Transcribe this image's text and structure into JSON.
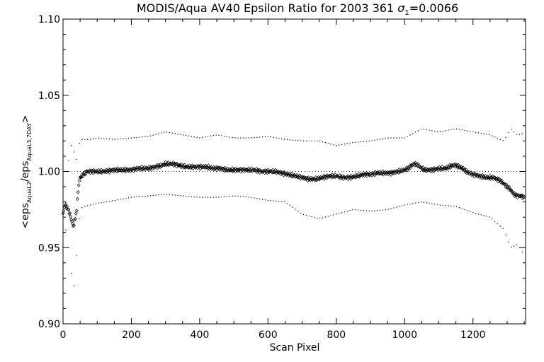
{
  "chart_data": {
    "type": "scatter",
    "title": "MODIS/Aqua AV40 Epsilon Ratio for 2003 361",
    "title_sigma_symbol": "σ",
    "title_sigma_subscript": "1",
    "title_sigma_value": "=0.0066",
    "xlabel": "Scan Pixel",
    "ylabel_parts": {
      "open": "<eps",
      "sub1": "AquaL2",
      "mid": "/eps",
      "sub2": "AquaL3,7DAY",
      "close": ">"
    },
    "xlim": [
      0,
      1354
    ],
    "ylim": [
      0.9,
      1.1
    ],
    "xticks": [
      {
        "value": 0,
        "label": "0"
      },
      {
        "value": 200,
        "label": "200"
      },
      {
        "value": 400,
        "label": "400"
      },
      {
        "value": 600,
        "label": "600"
      },
      {
        "value": 800,
        "label": "800"
      },
      {
        "value": 1000,
        "label": "1000"
      },
      {
        "value": 1200,
        "label": "1200"
      }
    ],
    "yticks": [
      {
        "value": 0.9,
        "label": "0.90"
      },
      {
        "value": 0.95,
        "label": "0.95"
      },
      {
        "value": 1.0,
        "label": "1.00"
      },
      {
        "value": 1.05,
        "label": "1.05"
      },
      {
        "value": 1.1,
        "label": "1.10"
      }
    ],
    "reference_line": 1.0,
    "series": [
      {
        "role": "mean",
        "marker": "diamond",
        "x": [
          0,
          5,
          10,
          15,
          20,
          25,
          30,
          35,
          40,
          45,
          50,
          55,
          60,
          70,
          80,
          90,
          100,
          120,
          150,
          180,
          200,
          220,
          250,
          270,
          290,
          300,
          310,
          320,
          340,
          360,
          380,
          400,
          420,
          440,
          460,
          480,
          500,
          520,
          540,
          560,
          580,
          600,
          620,
          640,
          660,
          680,
          700,
          720,
          740,
          760,
          780,
          800,
          820,
          840,
          860,
          880,
          900,
          920,
          940,
          960,
          980,
          1000,
          1010,
          1020,
          1030,
          1040,
          1050,
          1060,
          1080,
          1100,
          1120,
          1140,
          1150,
          1160,
          1170,
          1180,
          1200,
          1220,
          1240,
          1260,
          1280,
          1290,
          1300,
          1310,
          1320,
          1330,
          1340,
          1350
        ],
        "y": [
          0.972,
          0.978,
          0.977,
          0.975,
          0.972,
          0.968,
          0.964,
          0.968,
          0.975,
          0.99,
          0.996,
          0.997,
          0.998,
          1.0,
          1.0,
          1.0,
          1.0,
          1.0,
          1.001,
          1.001,
          1.001,
          1.002,
          1.002,
          1.003,
          1.004,
          1.005,
          1.005,
          1.005,
          1.004,
          1.003,
          1.003,
          1.003,
          1.003,
          1.002,
          1.002,
          1.001,
          1.001,
          1.001,
          1.001,
          1.001,
          1.0,
          1.0,
          1.0,
          0.999,
          0.998,
          0.997,
          0.996,
          0.995,
          0.995,
          0.996,
          0.997,
          0.997,
          0.996,
          0.996,
          0.997,
          0.998,
          0.998,
          0.999,
          0.999,
          0.999,
          1.0,
          1.001,
          1.002,
          1.004,
          1.005,
          1.004,
          1.002,
          1.001,
          1.001,
          1.002,
          1.002,
          1.004,
          1.004,
          1.003,
          1.002,
          1.0,
          0.998,
          0.997,
          0.996,
          0.996,
          0.994,
          0.992,
          0.99,
          0.988,
          0.985,
          0.984,
          0.984,
          0.983
        ]
      },
      {
        "role": "upper",
        "marker": "dot",
        "x": [
          0,
          10,
          20,
          30,
          40,
          50,
          60,
          80,
          100,
          150,
          200,
          250,
          300,
          350,
          400,
          450,
          500,
          550,
          600,
          650,
          700,
          750,
          800,
          850,
          900,
          950,
          1000,
          1050,
          1100,
          1150,
          1200,
          1250,
          1290,
          1310,
          1330,
          1350
        ],
        "y": [
          0.938,
          0.99,
          1.019,
          1.014,
          1.008,
          1.021,
          1.021,
          1.021,
          1.022,
          1.021,
          1.022,
          1.023,
          1.026,
          1.024,
          1.022,
          1.024,
          1.022,
          1.022,
          1.023,
          1.021,
          1.02,
          1.02,
          1.017,
          1.019,
          1.02,
          1.022,
          1.022,
          1.028,
          1.026,
          1.028,
          1.026,
          1.024,
          1.02,
          1.028,
          1.024,
          1.025
        ]
      },
      {
        "role": "lower",
        "marker": "dot",
        "x": [
          0,
          10,
          20,
          30,
          40,
          50,
          60,
          80,
          100,
          150,
          200,
          250,
          300,
          350,
          400,
          450,
          500,
          550,
          600,
          650,
          700,
          750,
          800,
          850,
          900,
          950,
          1000,
          1050,
          1100,
          1150,
          1200,
          1250,
          1290,
          1310,
          1330,
          1350
        ],
        "y": [
          0.96,
          0.962,
          0.942,
          0.92,
          0.945,
          0.975,
          0.977,
          0.978,
          0.979,
          0.981,
          0.983,
          0.984,
          0.985,
          0.984,
          0.983,
          0.983,
          0.984,
          0.983,
          0.981,
          0.98,
          0.972,
          0.969,
          0.972,
          0.975,
          0.974,
          0.975,
          0.978,
          0.98,
          0.978,
          0.977,
          0.973,
          0.97,
          0.962,
          0.95,
          0.952,
          0.945
        ]
      }
    ]
  }
}
